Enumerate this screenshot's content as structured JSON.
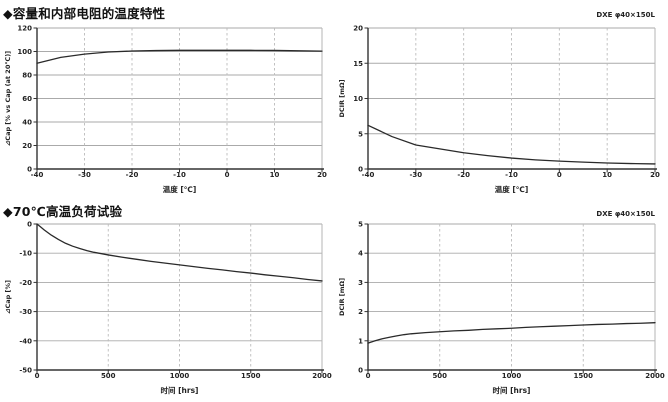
{
  "model_label": "DXE φ40×150L",
  "sections": [
    {
      "title": "◆容量和内部电阻的温度特性"
    },
    {
      "title": "◆70℃高温负荷试验"
    }
  ],
  "chart_data": [
    {
      "type": "line",
      "name": "cap-vs-temperature",
      "xlabel": "温度 [℃]",
      "ylabel": "⊿Cap [% vs Cap (at 20℃)]",
      "xlim": [
        -40,
        20
      ],
      "ylim": [
        0,
        120
      ],
      "xticks": [
        -40,
        -30,
        -20,
        -10,
        0,
        10,
        20
      ],
      "yticks": [
        0,
        20,
        40,
        60,
        80,
        100,
        120
      ],
      "grid": true,
      "legend": "none",
      "series": [
        {
          "name": "⊿Cap",
          "x": [
            -40,
            -35,
            -30,
            -25,
            -20,
            -15,
            -10,
            -5,
            0,
            5,
            10,
            15,
            20
          ],
          "y": [
            90,
            95,
            97.8,
            99.6,
            100.4,
            100.8,
            101,
            101,
            101,
            101,
            100.9,
            100.6,
            100.3
          ]
        }
      ]
    },
    {
      "type": "line",
      "name": "dcir-vs-temperature",
      "xlabel": "温度 [℃]",
      "ylabel": "DCIR [mΩ]",
      "xlim": [
        -40,
        20
      ],
      "ylim": [
        0,
        20
      ],
      "xticks": [
        -40,
        -30,
        -20,
        -10,
        0,
        10,
        20
      ],
      "yticks": [
        0,
        5,
        10,
        15,
        20
      ],
      "grid": true,
      "legend": "none",
      "series": [
        {
          "name": "DCIR",
          "x": [
            -40,
            -35,
            -30,
            -25,
            -20,
            -15,
            -10,
            -5,
            0,
            5,
            10,
            15,
            20
          ],
          "y": [
            6.2,
            4.6,
            3.4,
            2.85,
            2.3,
            1.9,
            1.55,
            1.3,
            1.12,
            0.97,
            0.85,
            0.77,
            0.72
          ]
        }
      ]
    },
    {
      "type": "line",
      "name": "cap-vs-time-70c",
      "xlabel": "时间 [hrs]",
      "ylabel": "⊿Cap [%]",
      "xlim": [
        0,
        2000
      ],
      "ylim": [
        -50,
        0
      ],
      "xticks": [
        0,
        500,
        1000,
        1500,
        2000
      ],
      "yticks": [
        -50,
        -40,
        -30,
        -20,
        -10,
        0
      ],
      "grid": true,
      "legend": "none",
      "series": [
        {
          "name": "⊿Cap",
          "x": [
            0,
            25,
            50,
            100,
            150,
            200,
            250,
            300,
            350,
            400,
            500,
            600,
            700,
            800,
            900,
            1000,
            1100,
            1200,
            1300,
            1400,
            1500,
            1600,
            1700,
            1800,
            1900,
            2000
          ],
          "y": [
            0,
            -1.0,
            -2.0,
            -3.8,
            -5.3,
            -6.6,
            -7.6,
            -8.4,
            -9.1,
            -9.7,
            -10.6,
            -11.4,
            -12.1,
            -12.8,
            -13.4,
            -14.0,
            -14.6,
            -15.2,
            -15.7,
            -16.3,
            -16.8,
            -17.4,
            -17.9,
            -18.4,
            -19.0,
            -19.5
          ]
        }
      ]
    },
    {
      "type": "line",
      "name": "dcir-vs-time-70c",
      "xlabel": "时间 [hrs]",
      "ylabel": "DCIR [mΩ]",
      "xlim": [
        0,
        2000
      ],
      "ylim": [
        0,
        5
      ],
      "xticks": [
        0,
        500,
        1000,
        1500,
        2000
      ],
      "yticks": [
        0,
        1,
        2,
        3,
        4,
        5
      ],
      "grid": true,
      "legend": "none",
      "series": [
        {
          "name": "DCIR",
          "x": [
            0,
            50,
            100,
            150,
            200,
            250,
            300,
            400,
            500,
            600,
            700,
            800,
            900,
            1000,
            1100,
            1200,
            1300,
            1400,
            1500,
            1600,
            1700,
            1800,
            1900,
            2000
          ],
          "y": [
            0.92,
            1.0,
            1.07,
            1.12,
            1.17,
            1.21,
            1.24,
            1.28,
            1.31,
            1.34,
            1.36,
            1.39,
            1.41,
            1.43,
            1.46,
            1.48,
            1.5,
            1.52,
            1.54,
            1.56,
            1.57,
            1.59,
            1.6,
            1.62
          ]
        }
      ]
    }
  ]
}
